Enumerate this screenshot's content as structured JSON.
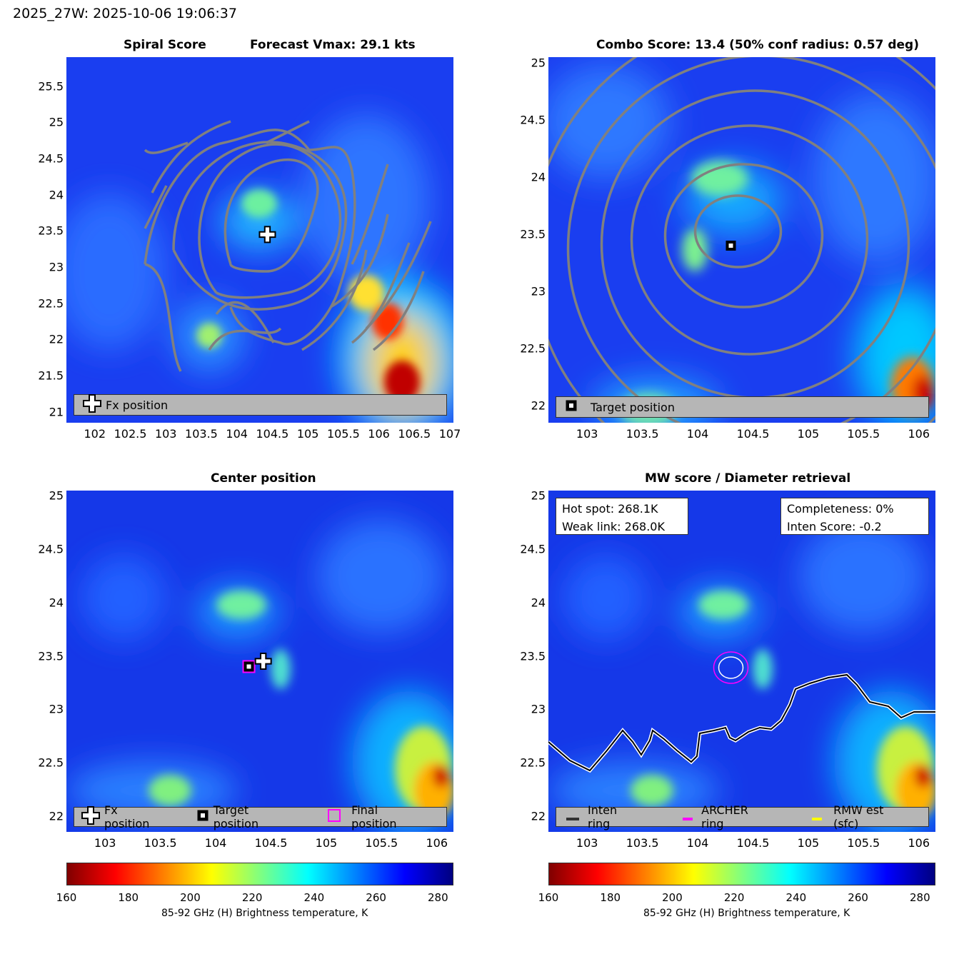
{
  "suptitle": "2025_27W: 2025-10-06 19:06:37",
  "colors": {
    "contour": "#808080",
    "legend_bg": "#b6b6b6",
    "archer_ring": "#ff00ff",
    "rmw_est": "#ffff00",
    "inten_ring": "#333333"
  },
  "panels": {
    "spiral": {
      "title_left": "Spiral Score",
      "title_right": "Forecast Vmax: 29.1 kts",
      "legend": {
        "fx": "Fx position"
      }
    },
    "combo": {
      "title": "Combo Score: 13.4  (50% conf radius: 0.57 deg)",
      "legend": {
        "target": "Target position"
      }
    },
    "center": {
      "title": "Center position",
      "legend": {
        "fx": "Fx position",
        "target": "Target position",
        "final": "Final position"
      }
    },
    "mw": {
      "title": "MW score / Diameter retrieval",
      "hot_spot": "Hot spot: 268.1K",
      "weak_link": "Weak link: 268.0K",
      "completeness": "Completeness: 0%",
      "inten_score": "Inten Score: -0.2",
      "legend": {
        "inten": "Inten ring",
        "archer": "ARCHER ring",
        "rmw": "RMW est (sfc)"
      }
    }
  },
  "colorbar": {
    "label": "85-92 GHz (H) Brightness temperature, K",
    "ticks": [
      "160",
      "180",
      "200",
      "220",
      "240",
      "260",
      "280"
    ],
    "range": [
      160,
      285
    ]
  },
  "chart_data": [
    {
      "type": "heatmap",
      "title": "Spiral Score",
      "xlim": [
        101.6,
        107.05
      ],
      "ylim": [
        20.85,
        25.9
      ],
      "xticks": [
        "102",
        "102.5",
        "103",
        "103.5",
        "104",
        "104.5",
        "105",
        "105.5",
        "106",
        "106.5",
        "107"
      ],
      "yticks": [
        "21",
        "21.5",
        "22",
        "22.5",
        "23",
        "23.5",
        "24",
        "24.5",
        "25",
        "25.5"
      ],
      "fx_position": {
        "lon": 104.43,
        "lat": 23.45
      }
    },
    {
      "type": "heatmap",
      "title": "Combo Score: 13.4",
      "xlim": [
        102.65,
        106.15
      ],
      "ylim": [
        21.85,
        25.05
      ],
      "xticks": [
        "103",
        "103.5",
        "104",
        "104.5",
        "105",
        "105.5",
        "106"
      ],
      "yticks": [
        "22",
        "22.5",
        "23",
        "23.5",
        "24",
        "24.5",
        "25"
      ],
      "target_position": {
        "lon": 104.3,
        "lat": 23.4
      }
    },
    {
      "type": "heatmap",
      "title": "Center position",
      "xlim": [
        102.65,
        106.15
      ],
      "ylim": [
        21.85,
        25.05
      ],
      "xticks": [
        "103",
        "103.5",
        "104",
        "104.5",
        "105",
        "105.5",
        "106"
      ],
      "yticks": [
        "22",
        "22.5",
        "23",
        "23.5",
        "24",
        "24.5",
        "25"
      ],
      "fx_position": {
        "lon": 104.43,
        "lat": 23.45
      },
      "target_position": {
        "lon": 104.3,
        "lat": 23.4
      },
      "final_position": {
        "lon": 104.3,
        "lat": 23.4
      }
    },
    {
      "type": "heatmap",
      "title": "MW score / Diameter retrieval",
      "xlim": [
        102.65,
        106.15
      ],
      "ylim": [
        21.85,
        25.05
      ],
      "xticks": [
        "103",
        "103.5",
        "104",
        "104.5",
        "105",
        "105.5",
        "106"
      ],
      "yticks": [
        "22",
        "22.5",
        "23",
        "23.5",
        "24",
        "24.5",
        "25"
      ],
      "archer_ring_center": {
        "lon": 104.3,
        "lat": 23.39
      }
    }
  ]
}
